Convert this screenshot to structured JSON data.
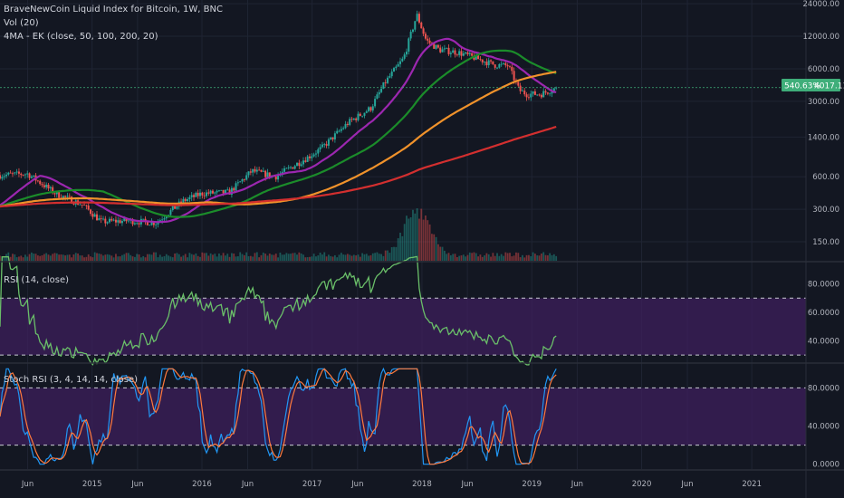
{
  "header": {
    "title": "BraveNewCoin Liquid Index for Bitcoin, 1W, BNC",
    "vol_label": "Vol (20)",
    "ma_label": "4MA - EK (close, 50, 100, 200, 20)"
  },
  "rsi_panel": {
    "label": "RSI (14, close)"
  },
  "stoch_panel": {
    "label": "Stoch RSI (3, 4, 14, 14, close)"
  },
  "price_badge": {
    "pct": "540.63%",
    "price": "4017.11"
  },
  "colors": {
    "background": "#131722",
    "candle_up": "#26a69a",
    "candle_down": "#ef5350",
    "ma20": "#9c27b0",
    "ma50": "#1b8c2a",
    "ma100": "#f0922b",
    "ma200": "#d32f2f",
    "rsi_line": "#6abf69",
    "stoch_k": "#2196f3",
    "stoch_d": "#ff7a3d",
    "band_fill": "#3d1f5c",
    "badge": "#3fae7a"
  },
  "chart_data": [
    {
      "type": "candlestick",
      "title": "BraveNewCoin Liquid Index for Bitcoin, 1W, BNC",
      "y_scale": "log",
      "y_ticks": [
        "24000.00",
        "12000.00",
        "6000.00",
        "3000.00",
        "1400.00",
        "600.00",
        "300.00",
        "150.00"
      ],
      "x_ticks": [
        "Jun",
        "2015",
        "Jun",
        "2016",
        "Jun",
        "2017",
        "Jun",
        "2018",
        "Jun",
        "2019",
        "Jun",
        "2020",
        "Jun",
        "2021"
      ],
      "x_range": [
        "2014-03-01",
        "2021-06-30"
      ],
      "close_points": [
        [
          "2014-03-01",
          620
        ],
        [
          "2014-06-01",
          640
        ],
        [
          "2014-09-01",
          420
        ],
        [
          "2014-12-01",
          330
        ],
        [
          "2015-02-01",
          230
        ],
        [
          "2015-05-01",
          235
        ],
        [
          "2015-08-01",
          225
        ],
        [
          "2015-11-01",
          360
        ],
        [
          "2016-01-01",
          420
        ],
        [
          "2016-04-01",
          430
        ],
        [
          "2016-06-15",
          680
        ],
        [
          "2016-09-01",
          600
        ],
        [
          "2016-12-15",
          900
        ],
        [
          "2017-02-01",
          1100
        ],
        [
          "2017-05-01",
          1900
        ],
        [
          "2017-07-15",
          2600
        ],
        [
          "2017-09-01",
          4500
        ],
        [
          "2017-11-01",
          7500
        ],
        [
          "2017-12-15",
          19000
        ],
        [
          "2018-01-15",
          11000
        ],
        [
          "2018-03-01",
          9000
        ],
        [
          "2018-05-01",
          8500
        ],
        [
          "2018-07-01",
          7500
        ],
        [
          "2018-09-01",
          6500
        ],
        [
          "2018-10-15",
          6400
        ],
        [
          "2018-11-20",
          3800
        ],
        [
          "2018-12-15",
          3500
        ],
        [
          "2019-02-01",
          3500
        ],
        [
          "2019-03-25",
          4017
        ]
      ],
      "moving_averages": [
        {
          "name": "MA 20",
          "period": 20,
          "color": "#9c27b0"
        },
        {
          "name": "MA 50",
          "period": 50,
          "color": "#1b8c2a"
        },
        {
          "name": "MA 100",
          "period": 100,
          "color": "#f0922b"
        },
        {
          "name": "MA 200",
          "period": 200,
          "color": "#d32f2f"
        }
      ],
      "last_price": 4017.11,
      "last_change_pct": "540.63%"
    },
    {
      "type": "line",
      "title": "RSI (14, close)",
      "y_ticks": [
        "80.0000",
        "60.0000",
        "40.0000"
      ],
      "band": [
        30,
        70
      ],
      "ylim": [
        25,
        95
      ]
    },
    {
      "type": "line",
      "title": "Stoch RSI (3, 4, 14, 14, close)",
      "y_ticks": [
        "80.0000",
        "40.0000",
        "0.0000"
      ],
      "band": [
        20,
        80
      ],
      "ylim": [
        -5,
        105
      ],
      "series": [
        {
          "name": "K",
          "color": "#2196f3"
        },
        {
          "name": "D",
          "color": "#ff7a3d"
        }
      ]
    }
  ]
}
